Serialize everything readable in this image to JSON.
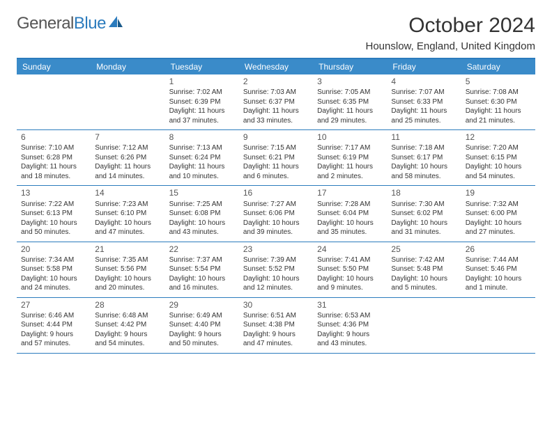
{
  "logo": {
    "text1": "General",
    "text2": "Blue"
  },
  "title": "October 2024",
  "location": "Hounslow, England, United Kingdom",
  "colors": {
    "header_bg": "#3a8bc9",
    "header_border": "#2b7bbd",
    "row_border": "#2b7bbd",
    "text": "#333333",
    "logo_blue": "#2b7bbd"
  },
  "day_names": [
    "Sunday",
    "Monday",
    "Tuesday",
    "Wednesday",
    "Thursday",
    "Friday",
    "Saturday"
  ],
  "weeks": [
    [
      null,
      null,
      {
        "n": "1",
        "sr": "7:02 AM",
        "ss": "6:39 PM",
        "dl": "11 hours and 37 minutes."
      },
      {
        "n": "2",
        "sr": "7:03 AM",
        "ss": "6:37 PM",
        "dl": "11 hours and 33 minutes."
      },
      {
        "n": "3",
        "sr": "7:05 AM",
        "ss": "6:35 PM",
        "dl": "11 hours and 29 minutes."
      },
      {
        "n": "4",
        "sr": "7:07 AM",
        "ss": "6:33 PM",
        "dl": "11 hours and 25 minutes."
      },
      {
        "n": "5",
        "sr": "7:08 AM",
        "ss": "6:30 PM",
        "dl": "11 hours and 21 minutes."
      }
    ],
    [
      {
        "n": "6",
        "sr": "7:10 AM",
        "ss": "6:28 PM",
        "dl": "11 hours and 18 minutes."
      },
      {
        "n": "7",
        "sr": "7:12 AM",
        "ss": "6:26 PM",
        "dl": "11 hours and 14 minutes."
      },
      {
        "n": "8",
        "sr": "7:13 AM",
        "ss": "6:24 PM",
        "dl": "11 hours and 10 minutes."
      },
      {
        "n": "9",
        "sr": "7:15 AM",
        "ss": "6:21 PM",
        "dl": "11 hours and 6 minutes."
      },
      {
        "n": "10",
        "sr": "7:17 AM",
        "ss": "6:19 PM",
        "dl": "11 hours and 2 minutes."
      },
      {
        "n": "11",
        "sr": "7:18 AM",
        "ss": "6:17 PM",
        "dl": "10 hours and 58 minutes."
      },
      {
        "n": "12",
        "sr": "7:20 AM",
        "ss": "6:15 PM",
        "dl": "10 hours and 54 minutes."
      }
    ],
    [
      {
        "n": "13",
        "sr": "7:22 AM",
        "ss": "6:13 PM",
        "dl": "10 hours and 50 minutes."
      },
      {
        "n": "14",
        "sr": "7:23 AM",
        "ss": "6:10 PM",
        "dl": "10 hours and 47 minutes."
      },
      {
        "n": "15",
        "sr": "7:25 AM",
        "ss": "6:08 PM",
        "dl": "10 hours and 43 minutes."
      },
      {
        "n": "16",
        "sr": "7:27 AM",
        "ss": "6:06 PM",
        "dl": "10 hours and 39 minutes."
      },
      {
        "n": "17",
        "sr": "7:28 AM",
        "ss": "6:04 PM",
        "dl": "10 hours and 35 minutes."
      },
      {
        "n": "18",
        "sr": "7:30 AM",
        "ss": "6:02 PM",
        "dl": "10 hours and 31 minutes."
      },
      {
        "n": "19",
        "sr": "7:32 AM",
        "ss": "6:00 PM",
        "dl": "10 hours and 27 minutes."
      }
    ],
    [
      {
        "n": "20",
        "sr": "7:34 AM",
        "ss": "5:58 PM",
        "dl": "10 hours and 24 minutes."
      },
      {
        "n": "21",
        "sr": "7:35 AM",
        "ss": "5:56 PM",
        "dl": "10 hours and 20 minutes."
      },
      {
        "n": "22",
        "sr": "7:37 AM",
        "ss": "5:54 PM",
        "dl": "10 hours and 16 minutes."
      },
      {
        "n": "23",
        "sr": "7:39 AM",
        "ss": "5:52 PM",
        "dl": "10 hours and 12 minutes."
      },
      {
        "n": "24",
        "sr": "7:41 AM",
        "ss": "5:50 PM",
        "dl": "10 hours and 9 minutes."
      },
      {
        "n": "25",
        "sr": "7:42 AM",
        "ss": "5:48 PM",
        "dl": "10 hours and 5 minutes."
      },
      {
        "n": "26",
        "sr": "7:44 AM",
        "ss": "5:46 PM",
        "dl": "10 hours and 1 minute."
      }
    ],
    [
      {
        "n": "27",
        "sr": "6:46 AM",
        "ss": "4:44 PM",
        "dl": "9 hours and 57 minutes."
      },
      {
        "n": "28",
        "sr": "6:48 AM",
        "ss": "4:42 PM",
        "dl": "9 hours and 54 minutes."
      },
      {
        "n": "29",
        "sr": "6:49 AM",
        "ss": "4:40 PM",
        "dl": "9 hours and 50 minutes."
      },
      {
        "n": "30",
        "sr": "6:51 AM",
        "ss": "4:38 PM",
        "dl": "9 hours and 47 minutes."
      },
      {
        "n": "31",
        "sr": "6:53 AM",
        "ss": "4:36 PM",
        "dl": "9 hours and 43 minutes."
      },
      null,
      null
    ]
  ]
}
